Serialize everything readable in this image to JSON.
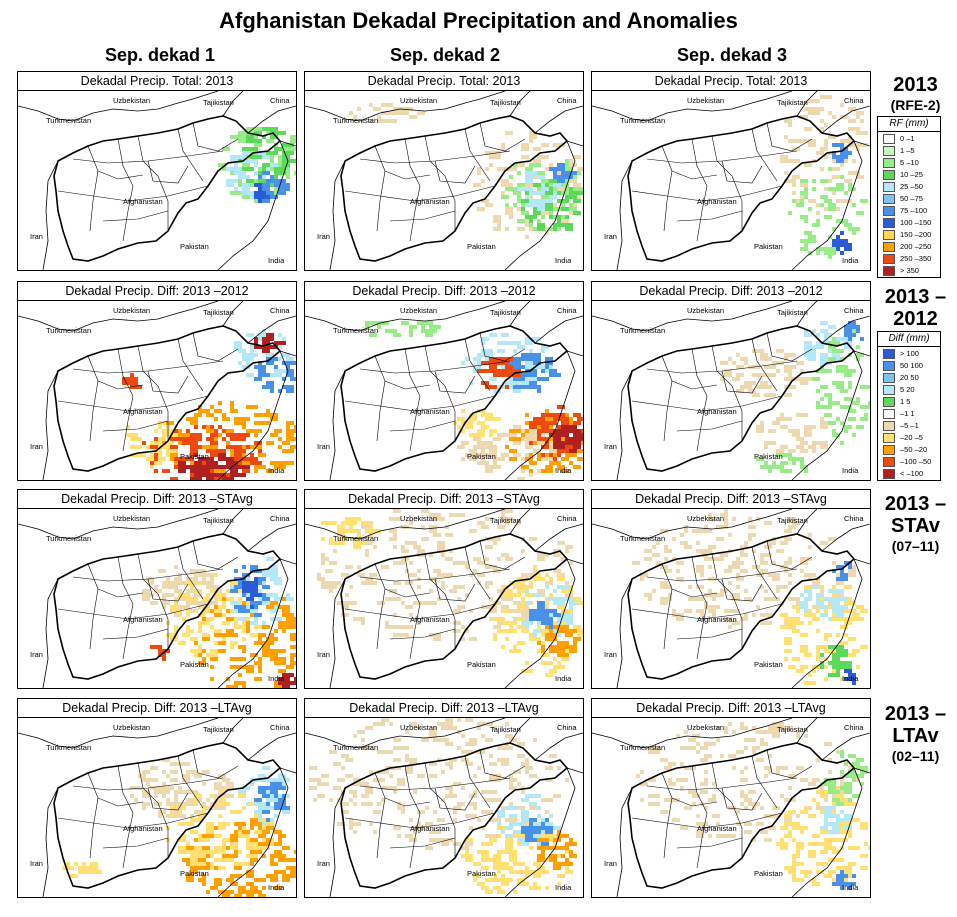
{
  "title": "Afghanistan Dekadal Precipitation and Anomalies",
  "columns": [
    "Sep. dekad 1",
    "Sep. dekad 2",
    "Sep. dekad 3"
  ],
  "row_labels": [
    {
      "main": "2013",
      "sub": "(RFE-2)"
    },
    {
      "main": "2013 –2012",
      "sub": ""
    },
    {
      "main": "2013 –STAv",
      "sub": "(07–11)"
    },
    {
      "main": "2013 –LTAv",
      "sub": "(02–11)"
    }
  ],
  "panel_titles": [
    "Dekadal Precip. Total: 2013",
    "Dekadal Precip. Diff: 2013 –2012",
    "Dekadal Precip. Diff: 2013 –STAvg",
    "Dekadal Precip. Diff: 2013 –LTAvg"
  ],
  "map_labels": {
    "uzbekistan": "Uzbekistan",
    "tajikistan": "Tajikistan",
    "china": "China",
    "turkmenistan": "Turkmenistan",
    "afghanistan": "Afghanistan",
    "iran": "Iran",
    "pakistan": "Pakistan",
    "india": "India"
  },
  "legend_rf": {
    "title": "RF (mm)",
    "items": [
      {
        "label": "0 –1",
        "color": "#ffffff"
      },
      {
        "label": "1 –5",
        "color": "#c8f5c0"
      },
      {
        "label": "5 –10",
        "color": "#98ec88"
      },
      {
        "label": "10 –25",
        "color": "#5cd85a"
      },
      {
        "label": "25 –50",
        "color": "#b4e8f8"
      },
      {
        "label": "50 –75",
        "color": "#7cc4f4"
      },
      {
        "label": "75 –100",
        "color": "#4890e8"
      },
      {
        "label": "100 –150",
        "color": "#2a5cd8"
      },
      {
        "label": "150 –200",
        "color": "#ffd850"
      },
      {
        "label": "200 –250",
        "color": "#ffa000"
      },
      {
        "label": "250 –350",
        "color": "#ee4a10"
      },
      {
        "label": "> 350",
        "color": "#b02020"
      }
    ]
  },
  "legend_diff": {
    "title": "Diff (mm)",
    "items": [
      {
        "label": "> 100",
        "color": "#2a5cd8"
      },
      {
        "label": "50  100",
        "color": "#4890e8"
      },
      {
        "label": "20  50",
        "color": "#7cc4f4"
      },
      {
        "label": "5  20",
        "color": "#b4e8f8"
      },
      {
        "label": "1   5",
        "color": "#5cd85a"
      },
      {
        "label": "–1   1",
        "color": "#ffffff"
      },
      {
        "label": "–5  –1",
        "color": "#eed8b0"
      },
      {
        "label": "–20  –5",
        "color": "#ffe070"
      },
      {
        "label": "–50  –20",
        "color": "#ffa000"
      },
      {
        "label": "–100  –50",
        "color": "#ee4a10"
      },
      {
        "label": "< –100",
        "color": "#b02020"
      }
    ]
  },
  "colors": {
    "tan": "#eed8b0",
    "yellow": "#ffe070",
    "orange": "#ffa000",
    "red": "#ee4a10",
    "darkred": "#b02020",
    "green": "#5cd85a",
    "lightgreen": "#98ec88",
    "lightblue": "#b4e8f8",
    "blue": "#4890e8",
    "darkblue": "#2a5cd8"
  }
}
